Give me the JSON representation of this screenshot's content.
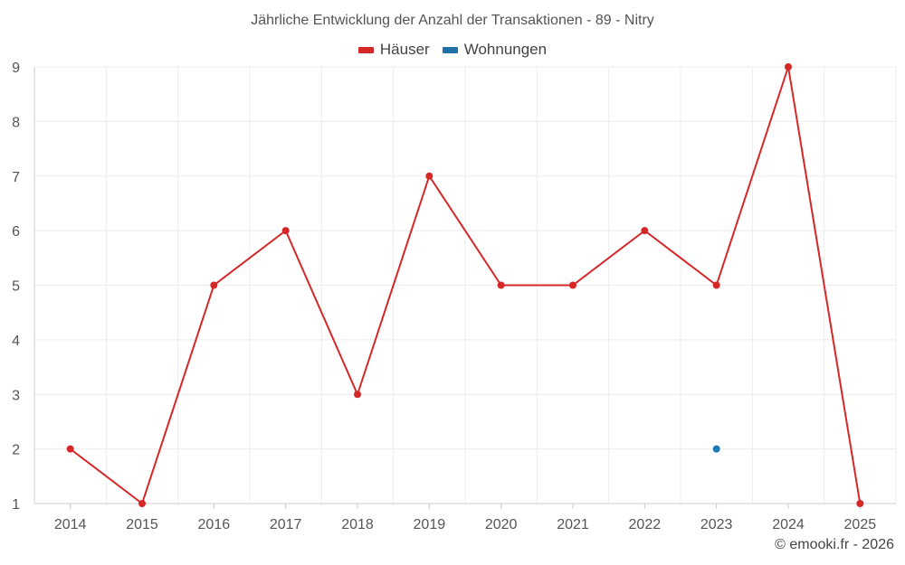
{
  "chart_data": {
    "type": "line",
    "title": "Jährliche Entwicklung der Anzahl der Transaktionen - 89 - Nitry",
    "categories": [
      "2014",
      "2015",
      "2016",
      "2017",
      "2018",
      "2019",
      "2020",
      "2021",
      "2022",
      "2023",
      "2024",
      "2025"
    ],
    "series": [
      {
        "name": "Häuser",
        "color": "#d62728",
        "values": [
          2,
          1,
          5,
          6,
          3,
          7,
          5,
          5,
          6,
          5,
          9,
          1
        ]
      },
      {
        "name": "Wohnungen",
        "color": "#1f77b4",
        "values": [
          null,
          null,
          null,
          null,
          null,
          null,
          null,
          null,
          null,
          2,
          null,
          null
        ]
      }
    ],
    "y_ticks": [
      "1",
      "2",
      "3",
      "4",
      "5",
      "6",
      "7",
      "8",
      "9"
    ],
    "ylim": [
      1,
      9
    ],
    "grid": true,
    "legend_position": "top-center"
  },
  "footer": {
    "credit": "© emooki.fr - 2026"
  }
}
